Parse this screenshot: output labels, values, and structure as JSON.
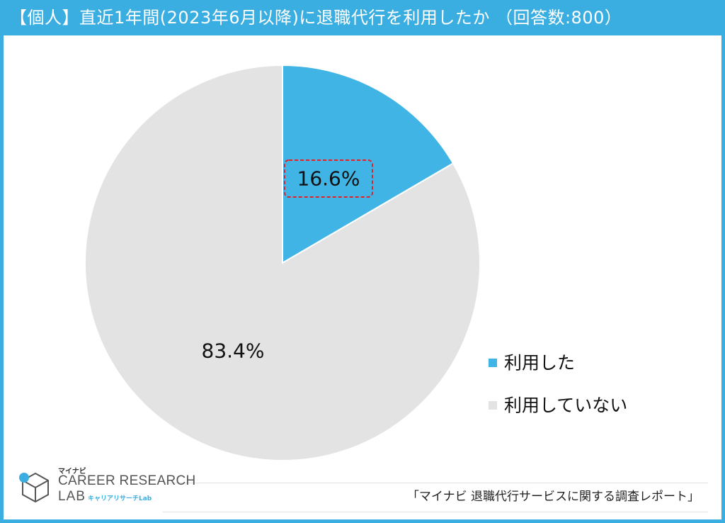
{
  "title": "【個人】直近1年間(2023年6月以降)に退職代行を利用したか （回答数:800）",
  "colors": {
    "accent": "#3aaee0",
    "slice_used": "#41b4e6",
    "slice_not_used": "#e3e3e3",
    "highlight_box": "#d9232d"
  },
  "chart_data": {
    "type": "pie",
    "title": "【個人】直近1年間(2023年6月以降)に退職代行を利用したか （回答数:800）",
    "slices": [
      {
        "label": "利用した",
        "value": 16.6,
        "display": "16.6%",
        "color": "#41b4e6",
        "highlighted": true
      },
      {
        "label": "利用していない",
        "value": 83.4,
        "display": "83.4%",
        "color": "#e3e3e3",
        "highlighted": false
      }
    ],
    "start_angle": "12 o'clock",
    "direction": "clockwise",
    "legend_position": "right"
  },
  "footer": {
    "source": "「マイナビ 退職代行サービスに関する調査レポート」"
  },
  "logo": {
    "brand": "マイナビ",
    "line1": "CAREER RESEARCH",
    "line2": "LAB",
    "sub": "キャリアリサーチLab",
    "icon": "cube-logo-icon"
  }
}
